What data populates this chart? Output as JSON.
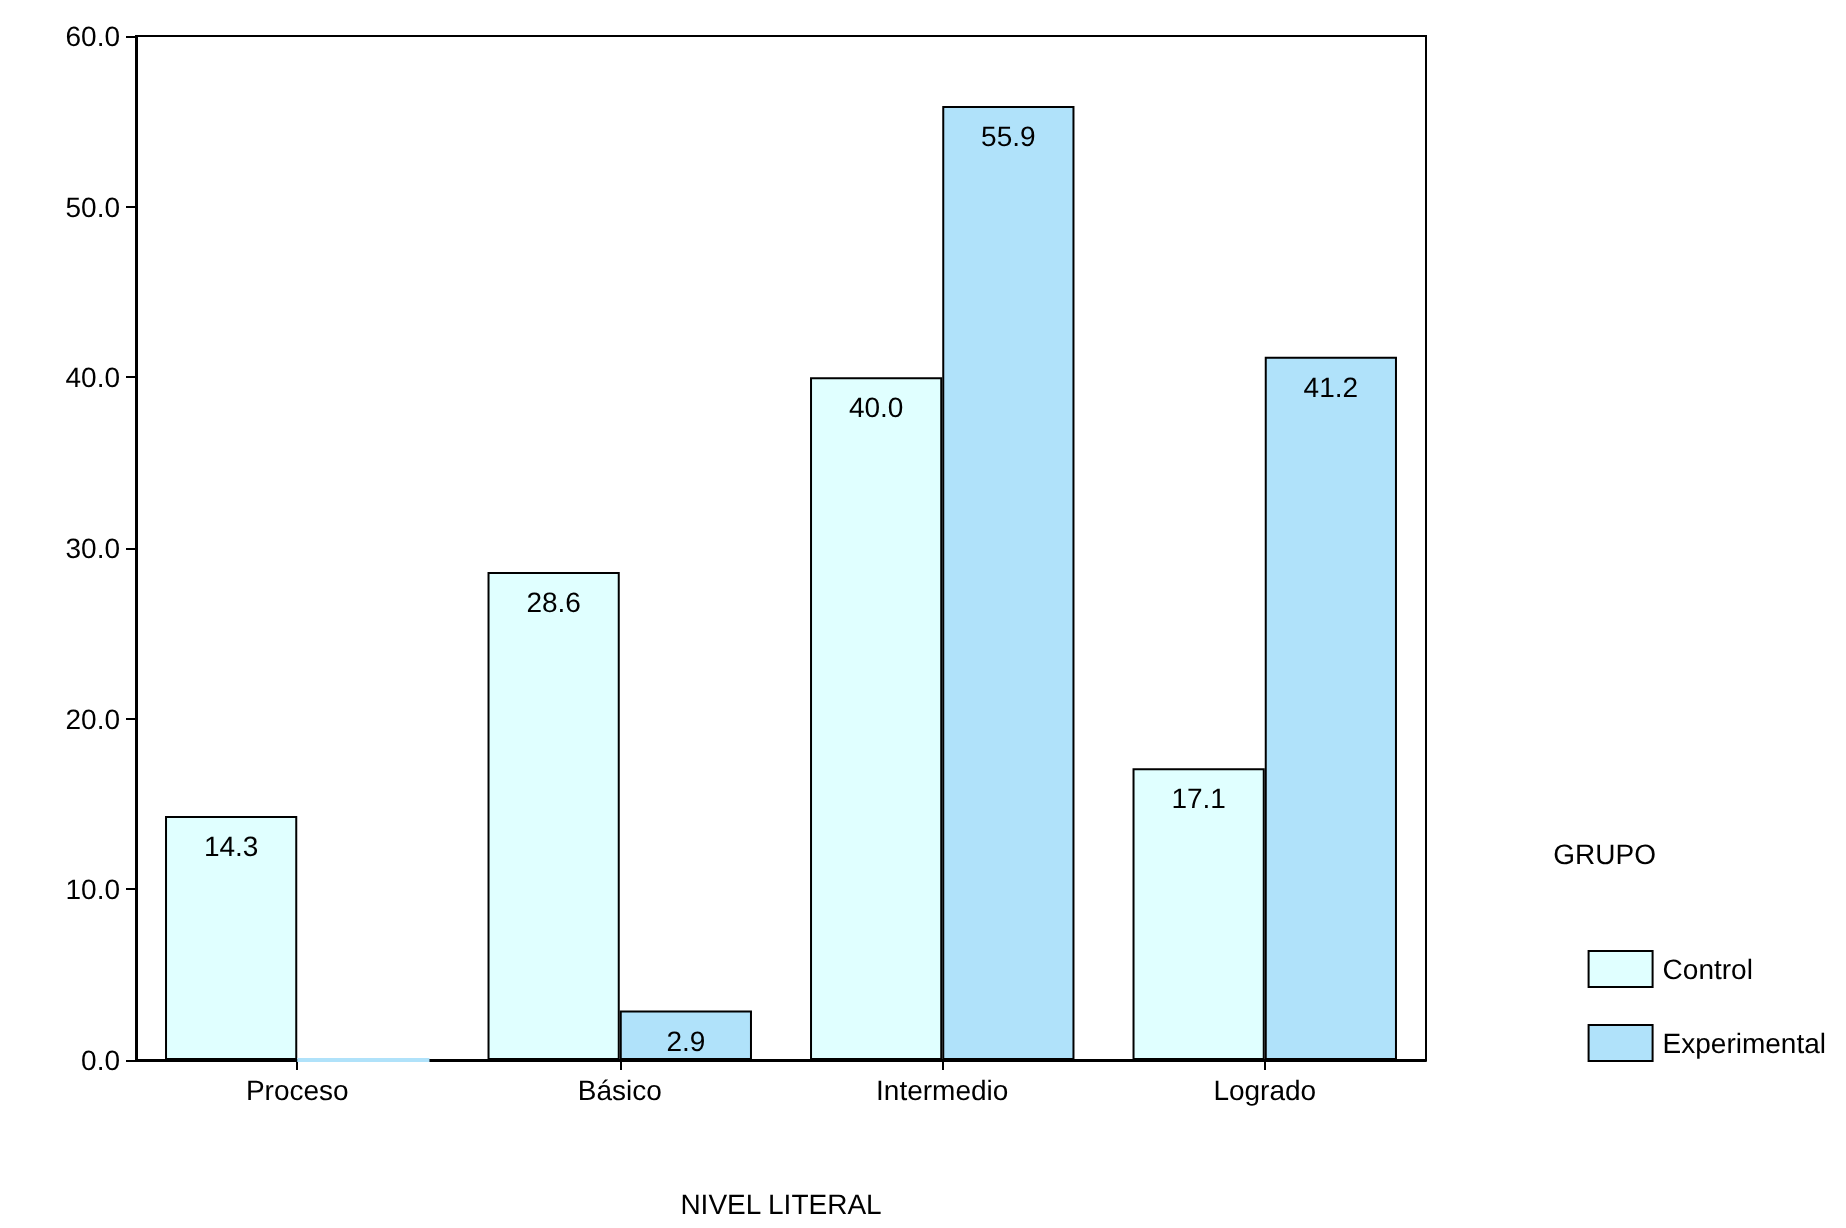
{
  "chart_data": {
    "type": "bar",
    "xlabel": "NIVEL LITERAL",
    "legend_title": "GRUPO",
    "categories": [
      "Proceso",
      "Básico",
      "Intermedio",
      "Logrado"
    ],
    "series": [
      {
        "name": "Control",
        "color": "#e0ffff",
        "values": [
          14.3,
          28.6,
          40.0,
          17.1
        ],
        "value_labels": [
          "14.3",
          "28.6",
          "40.0",
          "17.1"
        ]
      },
      {
        "name": "Experimental",
        "color": "#b0e2fa",
        "values": [
          0,
          2.9,
          55.9,
          41.2
        ],
        "value_labels": [
          null,
          "2.9",
          "55.9",
          "41.2"
        ]
      }
    ],
    "ylim": [
      0,
      60
    ],
    "yticks": [
      {
        "value": 0,
        "label": "0.0"
      },
      {
        "value": 10,
        "label": "10.0"
      },
      {
        "value": 20,
        "label": "20.0"
      },
      {
        "value": 30,
        "label": "30.0"
      },
      {
        "value": 40,
        "label": "40.0"
      },
      {
        "value": 50,
        "label": "50.0"
      },
      {
        "value": 60,
        "label": "60.0"
      }
    ],
    "grid": false,
    "legend": "right"
  }
}
